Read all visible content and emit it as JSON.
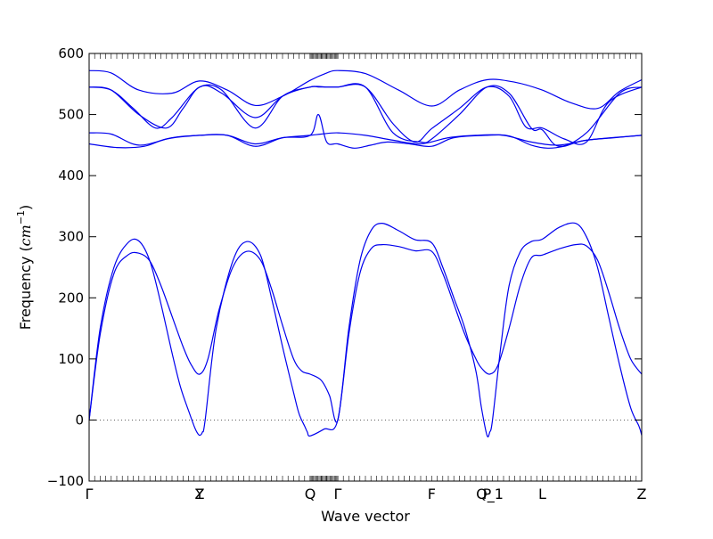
{
  "chart_data": {
    "type": "line",
    "title": "",
    "xlabel": "Wave vector",
    "ylabel": "Frequency ($cm^{-1}$)",
    "ylabel_text": "Frequency (",
    "ylabel_math_base": "cm",
    "ylabel_math_sup": "−1",
    "ylabel_close": ")",
    "ylim": [
      -100,
      600
    ],
    "yticks": [
      -100,
      0,
      100,
      200,
      300,
      400,
      500,
      600
    ],
    "grid": false,
    "zero_reference_line": true,
    "line_color": "#0000ee",
    "high_symmetry_points": [
      {
        "label": "Γ",
        "x": 0.0
      },
      {
        "label": "Y",
        "x": 2.0
      },
      {
        "label": "Z",
        "x": 2.0
      },
      {
        "label": "Q",
        "x": 4.0
      },
      {
        "label": "Γ",
        "x": 4.5
      },
      {
        "label": "F",
        "x": 6.2
      },
      {
        "label": "P",
        "x": 7.2
      },
      {
        "label": "Q_1",
        "x": 7.25
      },
      {
        "label": "L",
        "x": 8.2
      },
      {
        "label": "Z",
        "x": 10.0
      }
    ],
    "xlim": [
      0,
      10
    ],
    "series": [
      {
        "x": [
          0.0,
          0.4,
          0.9,
          1.5,
          2.0,
          2.5,
          3.0,
          3.5,
          4.0,
          4.3,
          4.5,
          5.0,
          5.6,
          6.2,
          6.7,
          7.2,
          7.7,
          8.2,
          8.7,
          9.2,
          9.6,
          10.0
        ],
        "values": [
          572,
          568,
          540,
          535,
          555,
          540,
          515,
          530,
          556,
          568,
          572,
          567,
          540,
          514,
          540,
          557,
          553,
          540,
          520,
          510,
          538,
          557
        ]
      },
      {
        "x": [
          0.0,
          0.4,
          0.9,
          1.4,
          1.7,
          2.0,
          2.4,
          3.0,
          3.5,
          4.0,
          4.15,
          4.3,
          4.5,
          5.0,
          5.5,
          5.9,
          6.2,
          6.7,
          7.2,
          7.6,
          7.9,
          8.2,
          8.6,
          9.0,
          9.4,
          10.0
        ],
        "values": [
          545,
          540,
          500,
          478,
          510,
          545,
          540,
          478,
          530,
          545,
          545,
          545,
          545,
          545,
          485,
          455,
          477,
          510,
          545,
          530,
          480,
          478,
          460,
          455,
          520,
          545
        ]
      },
      {
        "x": [
          0.0,
          0.4,
          0.8,
          1.2,
          1.5,
          2.0,
          2.4,
          3.0,
          3.5,
          4.0,
          4.3,
          4.5,
          5.0,
          5.5,
          6.0,
          6.2,
          6.7,
          7.2,
          7.6,
          8.0,
          8.2,
          8.5,
          9.0,
          9.6,
          10.0
        ],
        "values": [
          545,
          540,
          510,
          478,
          495,
          545,
          535,
          495,
          530,
          545,
          545,
          545,
          545,
          470,
          455,
          460,
          500,
          545,
          535,
          478,
          475,
          448,
          470,
          535,
          545
        ]
      },
      {
        "x": [
          0.0,
          0.4,
          0.9,
          1.5,
          2.0,
          2.5,
          3.0,
          3.5,
          4.0,
          4.2,
          4.5,
          5.0,
          5.5,
          6.0,
          6.5,
          7.0,
          7.5,
          8.0,
          8.5,
          9.0,
          9.5,
          10.0
        ],
        "values": [
          470,
          468,
          450,
          462,
          466,
          466,
          452,
          462,
          466,
          468,
          470,
          466,
          458,
          452,
          462,
          466,
          466,
          455,
          450,
          458,
          462,
          466
        ]
      },
      {
        "x": [
          0.0,
          0.5,
          1.0,
          1.4,
          2.0,
          2.5,
          3.0,
          3.5,
          4.0,
          4.15,
          4.3,
          4.5,
          4.8,
          5.1,
          5.4,
          5.8,
          6.2,
          6.6,
          7.2,
          7.6,
          8.0,
          8.3,
          8.6,
          9.0,
          10.0
        ],
        "values": [
          452,
          446,
          448,
          460,
          466,
          466,
          448,
          462,
          466,
          500,
          455,
          452,
          445,
          450,
          455,
          452,
          448,
          462,
          466,
          465,
          450,
          445,
          448,
          458,
          466
        ]
      },
      {
        "x": [
          0.0,
          0.2,
          0.45,
          0.7,
          0.9,
          1.1,
          1.3,
          1.5,
          1.65,
          1.8,
          1.9,
          1.95,
          2.0,
          2.05,
          2.1,
          2.3,
          2.6,
          2.85,
          3.1,
          3.3,
          3.5,
          3.7,
          3.8,
          3.9,
          3.95,
          4.0,
          4.25,
          4.5,
          4.7,
          4.9,
          5.1,
          5.3,
          5.6,
          5.9,
          6.2,
          6.4,
          6.6,
          6.8,
          7.0,
          7.1,
          7.2,
          7.25,
          7.3,
          7.45,
          7.6,
          7.8,
          8.0,
          8.2,
          8.5,
          8.8,
          9.0,
          9.2,
          9.4,
          9.6,
          9.8,
          9.95,
          10.0
        ],
        "values": [
          0,
          150,
          250,
          290,
          293,
          260,
          190,
          110,
          55,
          15,
          -10,
          -20,
          -25,
          -20,
          0,
          150,
          260,
          292,
          270,
          200,
          120,
          45,
          10,
          -10,
          -20,
          -26,
          -15,
          0,
          150,
          260,
          310,
          322,
          310,
          295,
          290,
          250,
          200,
          150,
          80,
          20,
          -25,
          -20,
          0,
          120,
          220,
          275,
          292,
          296,
          315,
          322,
          300,
          250,
          170,
          90,
          20,
          -10,
          -25
        ]
      },
      {
        "x": [
          0.0,
          0.2,
          0.45,
          0.7,
          0.9,
          1.1,
          1.3,
          1.5,
          1.7,
          1.85,
          2.0,
          2.15,
          2.35,
          2.6,
          2.85,
          3.1,
          3.3,
          3.5,
          3.7,
          3.85,
          4.0,
          4.2,
          4.35,
          4.5,
          4.7,
          4.9,
          5.1,
          5.3,
          5.6,
          5.9,
          6.2,
          6.4,
          6.6,
          6.8,
          7.0,
          7.1,
          7.25,
          7.4,
          7.6,
          7.8,
          8.0,
          8.2,
          8.5,
          8.8,
          9.0,
          9.2,
          9.4,
          9.6,
          9.8,
          10.0
        ],
        "values": [
          0,
          140,
          240,
          270,
          273,
          260,
          220,
          170,
          120,
          90,
          75,
          100,
          180,
          250,
          276,
          262,
          215,
          155,
          100,
          80,
          75,
          65,
          40,
          0,
          140,
          240,
          280,
          287,
          284,
          277,
          276,
          240,
          190,
          140,
          100,
          85,
          75,
          90,
          150,
          220,
          265,
          270,
          280,
          287,
          285,
          262,
          210,
          150,
          100,
          75
        ]
      }
    ]
  }
}
